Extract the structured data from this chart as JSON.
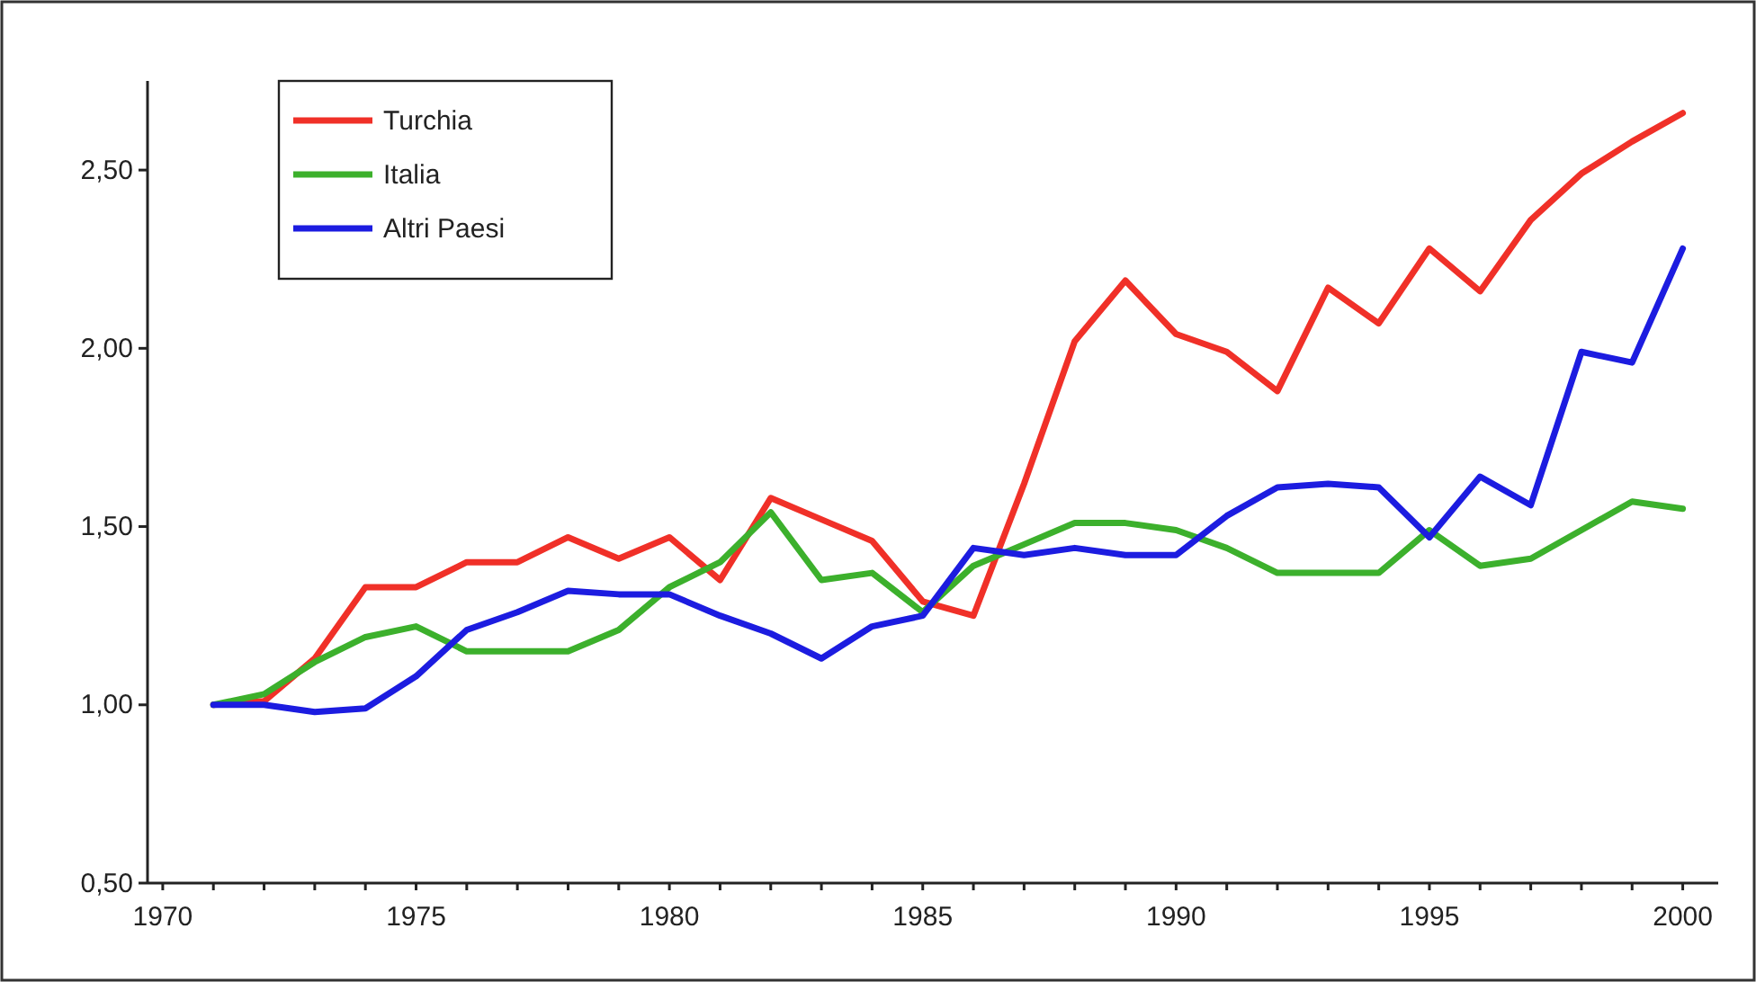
{
  "chart_data": {
    "type": "line",
    "x": [
      1971,
      1972,
      1973,
      1974,
      1975,
      1976,
      1977,
      1978,
      1979,
      1980,
      1981,
      1982,
      1983,
      1984,
      1985,
      1986,
      1987,
      1988,
      1989,
      1990,
      1991,
      1992,
      1993,
      1994,
      1995,
      1996,
      1997,
      1998,
      1999,
      2000
    ],
    "series": [
      {
        "name": "Turchia",
        "color": "#f03028",
        "values": [
          1.0,
          1.01,
          1.13,
          1.33,
          1.33,
          1.4,
          1.4,
          1.47,
          1.41,
          1.47,
          1.35,
          1.58,
          1.52,
          1.46,
          1.29,
          1.25,
          1.62,
          2.02,
          2.19,
          2.04,
          1.99,
          1.88,
          2.17,
          2.07,
          2.28,
          2.16,
          2.36,
          2.49,
          2.58,
          2.66
        ]
      },
      {
        "name": "Italia",
        "color": "#3cb02c",
        "values": [
          1.0,
          1.03,
          1.12,
          1.19,
          1.22,
          1.15,
          1.15,
          1.15,
          1.21,
          1.33,
          1.4,
          1.54,
          1.35,
          1.37,
          1.26,
          1.39,
          1.45,
          1.51,
          1.51,
          1.49,
          1.44,
          1.37,
          1.37,
          1.37,
          1.49,
          1.39,
          1.41,
          1.49,
          1.57,
          1.55
        ]
      },
      {
        "name": "Altri Paesi",
        "color": "#1c1ce0",
        "values": [
          1.0,
          1.0,
          0.98,
          0.99,
          1.08,
          1.21,
          1.26,
          1.32,
          1.31,
          1.31,
          1.25,
          1.2,
          1.13,
          1.22,
          1.25,
          1.44,
          1.42,
          1.44,
          1.42,
          1.42,
          1.53,
          1.61,
          1.62,
          1.61,
          1.47,
          1.64,
          1.56,
          1.99,
          1.96,
          2.28
        ]
      }
    ],
    "xlim": [
      1969.7,
      2000.7
    ],
    "xticks": [
      1970,
      {
        "value": 1971,
        "label": null
      },
      {
        "value": 1972,
        "label": null
      },
      {
        "value": 1973,
        "label": null
      },
      {
        "value": 1974,
        "label": null
      },
      1975,
      {
        "value": 1976,
        "label": null
      },
      {
        "value": 1977,
        "label": null
      },
      {
        "value": 1978,
        "label": null
      },
      {
        "value": 1979,
        "label": null
      },
      1980,
      {
        "value": 1981,
        "label": null
      },
      {
        "value": 1982,
        "label": null
      },
      {
        "value": 1983,
        "label": null
      },
      {
        "value": 1984,
        "label": null
      },
      1985,
      {
        "value": 1986,
        "label": null
      },
      {
        "value": 1987,
        "label": null
      },
      {
        "value": 1988,
        "label": null
      },
      {
        "value": 1989,
        "label": null
      },
      1990,
      {
        "value": 1991,
        "label": null
      },
      {
        "value": 1992,
        "label": null
      },
      {
        "value": 1993,
        "label": null
      },
      {
        "value": 1994,
        "label": null
      },
      1995,
      {
        "value": 1996,
        "label": null
      },
      {
        "value": 1997,
        "label": null
      },
      {
        "value": 1998,
        "label": null
      },
      {
        "value": 1999,
        "label": null
      },
      2000
    ],
    "ylim": [
      0.5,
      2.75
    ],
    "yticks": [
      {
        "value": 0.5,
        "label": "0,50"
      },
      {
        "value": 1,
        "label": "1,00"
      },
      {
        "value": 1.5,
        "label": "1,50"
      },
      {
        "value": 2,
        "label": "2,00"
      },
      {
        "value": 2.5,
        "label": "2,50"
      }
    ],
    "legend": "top left",
    "marker": "none",
    "line_style": "solid",
    "grid": false
  }
}
